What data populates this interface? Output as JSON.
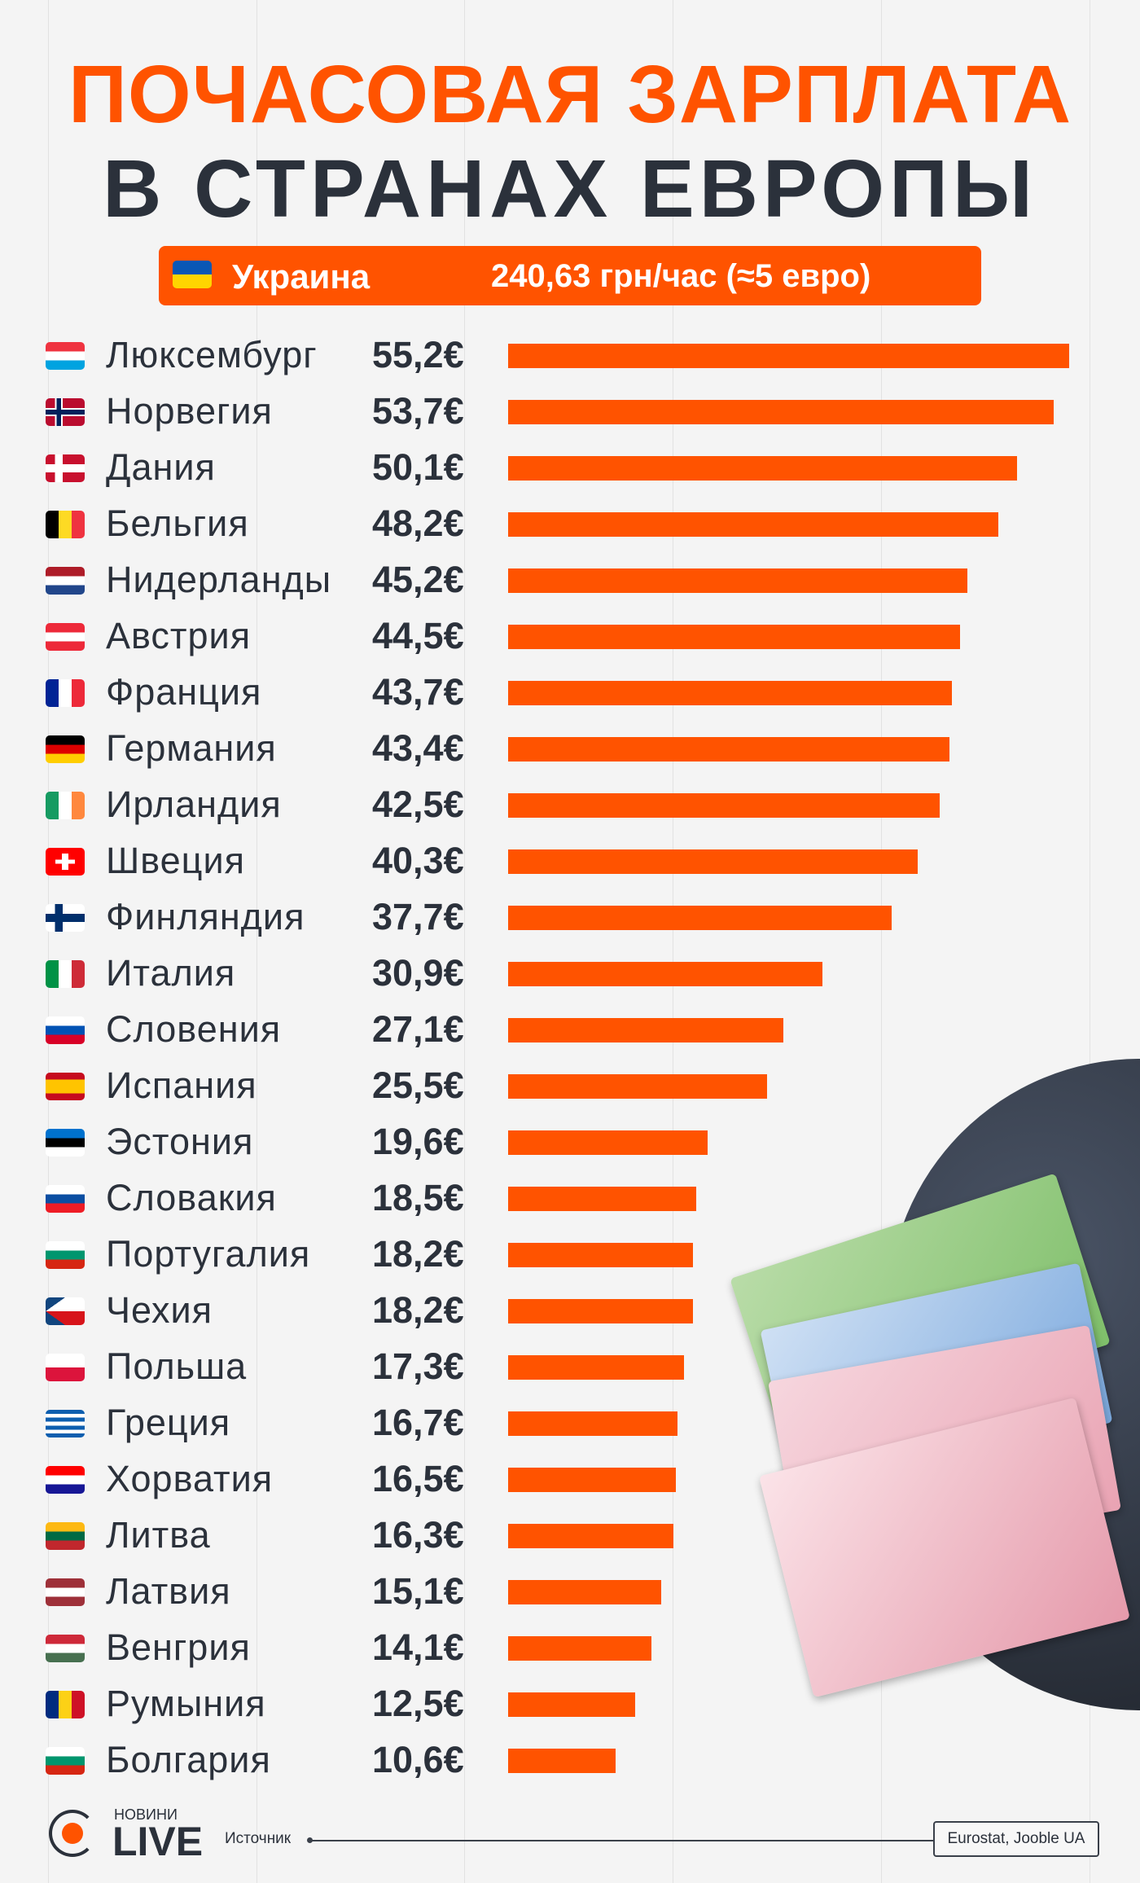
{
  "title_line1": "ПОЧАСОВАЯ ЗАРПЛАТА",
  "title_line2": "В СТРАНАХ ЕВРОПЫ",
  "banner": {
    "country": "Украина",
    "value": "240,63 грн/час (≈5 евро)",
    "flag": {
      "type": "h",
      "colors": [
        "#0a57b5",
        "#ffd500"
      ]
    }
  },
  "colors": {
    "accent": "#ff5300",
    "text": "#2b313b"
  },
  "chart_data": {
    "type": "bar",
    "orientation": "horizontal",
    "unit": "€",
    "title": "ПОЧАСОВАЯ ЗАРПЛАТА В СТРАНАХ ЕВРОПЫ",
    "xlim": [
      0,
      55.2
    ],
    "grid": false,
    "categories": [
      "Люксембург",
      "Норвегия",
      "Дания",
      "Бельгия",
      "Нидерланды",
      "Австрия",
      "Франция",
      "Германия",
      "Ирландия",
      "Швеция",
      "Финляндия",
      "Италия",
      "Словения",
      "Испания",
      "Эстония",
      "Словакия",
      "Португалия",
      "Чехия",
      "Польша",
      "Греция",
      "Хорватия",
      "Литва",
      "Латвия",
      "Венгрия",
      "Румыния",
      "Болгария"
    ],
    "values": [
      55.2,
      53.7,
      50.1,
      48.2,
      45.2,
      44.5,
      43.7,
      43.4,
      42.5,
      40.3,
      37.7,
      30.9,
      27.1,
      25.5,
      19.6,
      18.5,
      18.2,
      18.2,
      17.3,
      16.7,
      16.5,
      16.3,
      15.1,
      14.1,
      12.5,
      10.6
    ],
    "labels": [
      "55,2€",
      "53,7€",
      "50,1€",
      "48,2€",
      "45,2€",
      "44,5€",
      "43,7€",
      "43,4€",
      "42,5€",
      "40,3€",
      "37,7€",
      "30,9€",
      "27,1€",
      "25,5€",
      "19,6€",
      "18,5€",
      "18,2€",
      "18,2€",
      "17,3€",
      "16,7€",
      "16,5€",
      "16,3€",
      "15,1€",
      "14,1€",
      "12,5€",
      "10,6€"
    ],
    "flags": [
      {
        "type": "h",
        "colors": [
          "#ef3340",
          "#ffffff",
          "#00a3e0"
        ]
      },
      {
        "type": "nordic",
        "colors": [
          "#ba0c2f",
          "#ffffff",
          "#00205b"
        ]
      },
      {
        "type": "nordic",
        "colors": [
          "#c8102e",
          "#ffffff",
          "#ffffff"
        ]
      },
      {
        "type": "v",
        "colors": [
          "#000000",
          "#fdda24",
          "#ef3340"
        ]
      },
      {
        "type": "h",
        "colors": [
          "#ae1c28",
          "#ffffff",
          "#21468b"
        ]
      },
      {
        "type": "h",
        "colors": [
          "#ed2939",
          "#ffffff",
          "#ed2939"
        ]
      },
      {
        "type": "v",
        "colors": [
          "#002395",
          "#ffffff",
          "#ed2939"
        ]
      },
      {
        "type": "h",
        "colors": [
          "#000000",
          "#dd0000",
          "#ffce00"
        ]
      },
      {
        "type": "v",
        "colors": [
          "#169b62",
          "#ffffff",
          "#ff883e"
        ]
      },
      {
        "type": "cross",
        "colors": [
          "#ff0000",
          "#ffffff"
        ]
      },
      {
        "type": "nordic",
        "colors": [
          "#ffffff",
          "#002f6c",
          "#002f6c"
        ]
      },
      {
        "type": "v",
        "colors": [
          "#009246",
          "#ffffff",
          "#ce2b37"
        ]
      },
      {
        "type": "h",
        "colors": [
          "#ffffff",
          "#0052b4",
          "#d80027"
        ]
      },
      {
        "type": "h",
        "colors": [
          "#c60b1e",
          "#ffc400",
          "#ffc400",
          "#c60b1e"
        ]
      },
      {
        "type": "h",
        "colors": [
          "#0072ce",
          "#000000",
          "#ffffff"
        ]
      },
      {
        "type": "h",
        "colors": [
          "#ffffff",
          "#0b4ea2",
          "#ee1c25"
        ]
      },
      {
        "type": "h",
        "colors": [
          "#ffffff",
          "#00966e",
          "#d62612"
        ]
      },
      {
        "type": "czech",
        "colors": [
          "#ffffff",
          "#d7141a",
          "#11457e"
        ]
      },
      {
        "type": "h",
        "colors": [
          "#ffffff",
          "#dc143c"
        ]
      },
      {
        "type": "h",
        "colors": [
          "#0d5eaf",
          "#ffffff",
          "#0d5eaf",
          "#ffffff",
          "#0d5eaf",
          "#ffffff",
          "#0d5eaf"
        ]
      },
      {
        "type": "h",
        "colors": [
          "#ff0000",
          "#ffffff",
          "#171796"
        ]
      },
      {
        "type": "h",
        "colors": [
          "#fdb913",
          "#006a44",
          "#c1272d"
        ]
      },
      {
        "type": "h",
        "colors": [
          "#9e3039",
          "#ffffff",
          "#9e3039"
        ]
      },
      {
        "type": "h",
        "colors": [
          "#ce2939",
          "#ffffff",
          "#477050"
        ]
      },
      {
        "type": "v",
        "colors": [
          "#002b7f",
          "#fcd116",
          "#ce1126"
        ]
      },
      {
        "type": "h",
        "colors": [
          "#ffffff",
          "#00966e",
          "#d62612"
        ]
      }
    ]
  },
  "footer": {
    "logo_small": "НОВИНИ",
    "logo_big": "LIVE",
    "source_label": "Источник",
    "source_value": "Eurostat, Jooble UA"
  }
}
